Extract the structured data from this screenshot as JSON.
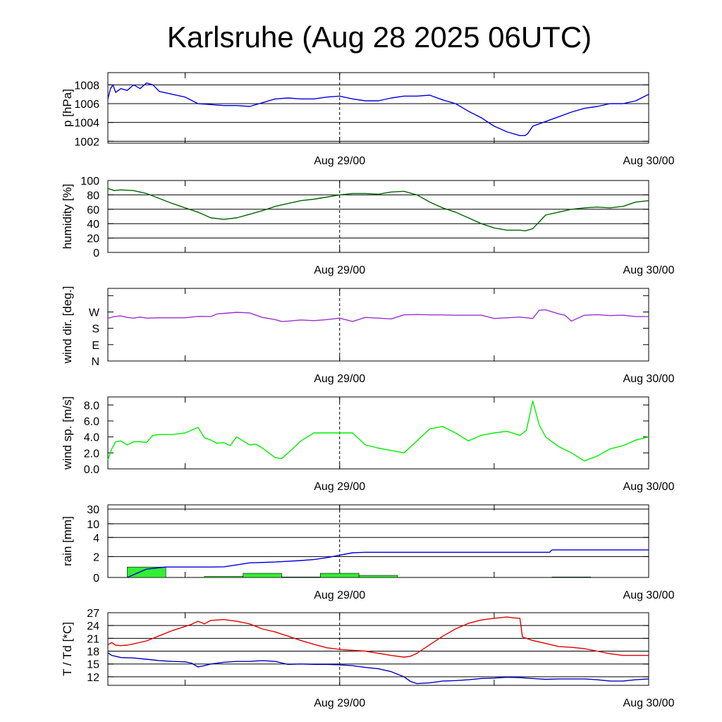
{
  "title": "Karlsruhe (Aug 28 2025 06UTC)",
  "colors": {
    "pressure": "#0000e0",
    "humidity": "#006400",
    "wind_dir": "#9a32cd",
    "wind_speed": "#00ee00",
    "rain_total": "#0000e0",
    "rain_bars": "#33ee33",
    "temperature": "#e00000",
    "dewpoint": "#0000c0"
  },
  "chart_data": [
    {
      "type": "line",
      "name": "pressure",
      "ylabel": "p [hPa]",
      "ylim": [
        1001.8,
        1009.3
      ],
      "yticks": [
        1002,
        1004,
        1006,
        1008
      ],
      "ytick_labels": [
        "1002",
        "1004",
        "1006",
        "1008"
      ],
      "xlim": [
        0,
        42
      ],
      "xticks": [
        6,
        18,
        30,
        42
      ],
      "xtick_labels": [
        "Aug 29/00",
        "Aug 30/00"
      ],
      "xtick_label_hours": [
        18,
        42
      ],
      "marker_hour": 18,
      "grid": true,
      "series": [
        {
          "name": "p",
          "x": [
            0,
            0.2,
            0.4,
            0.6,
            1,
            1.5,
            2,
            2.5,
            3,
            3.5,
            4,
            5,
            6,
            7,
            8,
            9,
            10,
            11,
            12,
            13,
            14,
            15,
            16,
            17,
            18,
            19,
            20,
            21,
            22,
            23,
            24,
            25,
            26,
            27,
            28,
            29,
            30,
            31,
            32,
            32.4,
            32.6,
            33,
            34,
            35,
            36,
            37,
            38,
            39,
            40,
            41,
            42
          ],
          "values": [
            1006.5,
            1007.6,
            1008.0,
            1007.2,
            1007.6,
            1007.4,
            1008.0,
            1007.6,
            1008.2,
            1008.0,
            1007.3,
            1007.0,
            1006.7,
            1006.0,
            1005.9,
            1005.8,
            1005.8,
            1005.7,
            1006.1,
            1006.5,
            1006.6,
            1006.5,
            1006.5,
            1006.7,
            1006.8,
            1006.5,
            1006.3,
            1006.3,
            1006.6,
            1006.8,
            1006.8,
            1006.9,
            1006.4,
            1006.0,
            1005.2,
            1004.5,
            1003.6,
            1003.0,
            1002.6,
            1002.6,
            1002.8,
            1003.6,
            1004.1,
            1004.6,
            1005.1,
            1005.5,
            1005.7,
            1006.0,
            1006.0,
            1006.3,
            1007.0
          ]
        }
      ]
    },
    {
      "type": "line",
      "name": "humidity",
      "ylabel": "humidity [%]",
      "ylim": [
        0,
        100
      ],
      "yticks": [
        0,
        20,
        40,
        60,
        80,
        100
      ],
      "ytick_labels": [
        "0",
        "20",
        "40",
        "60",
        "80",
        "100"
      ],
      "xlim": [
        0,
        42
      ],
      "xticks": [
        6,
        18,
        30,
        42
      ],
      "xtick_labels": [
        "Aug 29/00",
        "Aug 30/00"
      ],
      "xtick_label_hours": [
        18,
        42
      ],
      "marker_hour": 18,
      "grid": true,
      "series": [
        {
          "name": "humidity",
          "x": [
            0,
            0.5,
            1,
            2,
            3,
            4,
            5,
            6,
            7,
            8,
            9,
            10,
            11,
            12,
            13,
            14,
            15,
            16,
            17,
            18,
            19,
            20,
            21,
            22,
            23,
            24,
            25,
            26,
            27,
            28,
            29,
            30,
            31,
            32,
            32.4,
            32.6,
            33,
            34,
            35,
            36,
            37,
            38,
            39,
            40,
            41,
            42
          ],
          "values": [
            89,
            86,
            87,
            86,
            82,
            75,
            68,
            62,
            56,
            48,
            46,
            48,
            53,
            58,
            64,
            68,
            72,
            74,
            77,
            80,
            82,
            82,
            81,
            84,
            85,
            80,
            70,
            62,
            56,
            48,
            40,
            34,
            31,
            31,
            30,
            31,
            33,
            52,
            56,
            60,
            62,
            63,
            62,
            64,
            70,
            72
          ]
        }
      ]
    },
    {
      "type": "line",
      "name": "wind_direction",
      "ylabel": "wind dir. [deg.]",
      "ylim": [
        0,
        400
      ],
      "yticks": [
        0,
        90,
        180,
        270,
        360
      ],
      "ytick_labels": [
        "N",
        "E",
        "S",
        "W",
        ""
      ],
      "xlim": [
        0,
        42
      ],
      "xticks": [
        6,
        18,
        30,
        42
      ],
      "xtick_labels": [
        "Aug 29/00",
        "Aug 30/00"
      ],
      "xtick_label_hours": [
        18,
        42
      ],
      "marker_hour": 18,
      "grid": false,
      "series": [
        {
          "name": "direction",
          "x": [
            0,
            0.5,
            1,
            1.5,
            2,
            2.5,
            3,
            4,
            5,
            6,
            7,
            8,
            8.5,
            9,
            10,
            11,
            12,
            13,
            13.5,
            14,
            15,
            16,
            17,
            18,
            19,
            20,
            21,
            22,
            23,
            24,
            25,
            26,
            27,
            28,
            29,
            30,
            31,
            32,
            33,
            33.5,
            34,
            35,
            35.5,
            36,
            37,
            38,
            39,
            40,
            41,
            42
          ],
          "values": [
            235,
            245,
            248,
            240,
            236,
            242,
            236,
            238,
            238,
            238,
            246,
            245,
            260,
            262,
            268,
            265,
            240,
            228,
            218,
            220,
            226,
            222,
            228,
            236,
            218,
            240,
            236,
            232,
            254,
            256,
            254,
            254,
            252,
            252,
            252,
            234,
            238,
            242,
            234,
            280,
            282,
            260,
            252,
            220,
            252,
            255,
            250,
            252,
            245,
            245
          ]
        }
      ]
    },
    {
      "type": "line",
      "name": "wind_speed",
      "ylabel": "wind sp. [m/s]",
      "ylim": [
        0,
        9
      ],
      "yticks": [
        0,
        2,
        4,
        6,
        8
      ],
      "ytick_labels": [
        "0.0",
        "2.0",
        "4.0",
        "6.0",
        "8.0"
      ],
      "xlim": [
        0,
        42
      ],
      "xticks": [
        6,
        18,
        30,
        42
      ],
      "xtick_labels": [
        "Aug 29/00",
        "Aug 30/00"
      ],
      "xtick_label_hours": [
        18,
        42
      ],
      "marker_hour": 18,
      "grid": false,
      "series": [
        {
          "name": "speed",
          "x": [
            0,
            0.3,
            0.6,
            1,
            1.5,
            2,
            2.5,
            3,
            3.5,
            4,
            5,
            6,
            7,
            7.5,
            8,
            8.5,
            9,
            9.5,
            10,
            10.5,
            11,
            11.5,
            12,
            13,
            13.5,
            14,
            15,
            16,
            17,
            18,
            19,
            20,
            21,
            22,
            23,
            24,
            25,
            26,
            27,
            28,
            29,
            30,
            31,
            32,
            32.5,
            33,
            33.5,
            34,
            35,
            36,
            37,
            38,
            39,
            40,
            41,
            42
          ],
          "values": [
            1.1,
            2.5,
            3.4,
            3.5,
            3.0,
            3.4,
            3.4,
            3.3,
            4.2,
            4.3,
            4.3,
            4.5,
            5.2,
            3.9,
            3.6,
            3.2,
            3.3,
            2.9,
            4.0,
            3.5,
            3.0,
            3.1,
            2.6,
            1.4,
            1.3,
            2.0,
            3.5,
            4.5,
            4.5,
            4.5,
            4.5,
            3.0,
            2.6,
            2.3,
            2.0,
            3.5,
            5.0,
            5.3,
            4.5,
            3.5,
            4.2,
            4.5,
            4.7,
            4.2,
            4.8,
            8.5,
            5.5,
            4.0,
            2.8,
            2.0,
            1.0,
            1.6,
            2.5,
            2.9,
            3.6,
            4.0
          ]
        }
      ]
    },
    {
      "type": "bar+line",
      "name": "rain",
      "ylabel": "rain [mm]",
      "yscale": "custom",
      "yticks": [
        0,
        2,
        4,
        10,
        30
      ],
      "ytick_labels": [
        "0",
        "2",
        "4",
        "10",
        "30"
      ],
      "xlim": [
        0,
        42
      ],
      "xticks": [
        6,
        18,
        30,
        42
      ],
      "xtick_labels": [
        "Aug 29/00",
        "Aug 30/00"
      ],
      "xtick_label_hours": [
        18,
        42
      ],
      "marker_hour": 18,
      "grid": true,
      "bars": {
        "name": "interval rain (3h)",
        "start": [
          1.5,
          7.5,
          10.5,
          13.5,
          16.5,
          19.5,
          34.5
        ],
        "end": [
          4.5,
          10.5,
          13.5,
          16.5,
          19.5,
          22.5,
          37.5
        ],
        "values": [
          1.0,
          0.1,
          0.4,
          0.05,
          0.4,
          0.2,
          0.05
        ]
      },
      "series": [
        {
          "name": "accumulated rain",
          "x": [
            1.5,
            3,
            4.5,
            8,
            9,
            10,
            11,
            13,
            15,
            16,
            17,
            18,
            19,
            20,
            22,
            25,
            30,
            34.3,
            34.5,
            36,
            42
          ],
          "values": [
            0,
            0.8,
            1.0,
            1.0,
            1.02,
            1.2,
            1.4,
            1.48,
            1.62,
            1.72,
            1.9,
            2.15,
            2.4,
            2.45,
            2.45,
            2.45,
            2.45,
            2.45,
            2.7,
            2.7,
            2.7
          ]
        }
      ]
    },
    {
      "type": "line",
      "name": "temperature",
      "ylabel": "T / Td [*C]",
      "ylim": [
        10,
        27
      ],
      "yticks": [
        12,
        15,
        18,
        21,
        24,
        27
      ],
      "ytick_labels": [
        "12",
        "15",
        "18",
        "21",
        "24",
        "27"
      ],
      "xlim": [
        0,
        42
      ],
      "xticks": [
        6,
        18,
        30,
        42
      ],
      "xtick_labels": [
        "Aug 29/00",
        "Aug 30/00"
      ],
      "xtick_label_hours": [
        18,
        42
      ],
      "marker_hour": 18,
      "grid": true,
      "series": [
        {
          "name": "T",
          "x": [
            0,
            0.3,
            0.6,
            1,
            1.5,
            2,
            3,
            4,
            5,
            6,
            6.5,
            7,
            7.5,
            8,
            9,
            10,
            11,
            12,
            13,
            14,
            15,
            16,
            17,
            18,
            19,
            20,
            21,
            22,
            23,
            23.5,
            24,
            25,
            26,
            27,
            28,
            29,
            30,
            31,
            31.5,
            32,
            32.2,
            33,
            34,
            35,
            36,
            37,
            38,
            39,
            40,
            41,
            42
          ],
          "values": [
            19.5,
            20.0,
            19.4,
            19.3,
            19.4,
            19.7,
            20.4,
            21.6,
            22.8,
            23.8,
            24.3,
            25.0,
            24.4,
            25.2,
            25.4,
            25.0,
            24.4,
            23.2,
            22.5,
            21.5,
            20.5,
            19.6,
            18.8,
            18.4,
            18.2,
            18.0,
            17.5,
            17.0,
            16.6,
            16.8,
            17.5,
            19.5,
            21.5,
            23.2,
            24.5,
            25.3,
            25.7,
            26.0,
            25.8,
            25.7,
            21.3,
            20.5,
            19.8,
            19.1,
            18.9,
            18.6,
            18.0,
            17.4,
            17.0,
            17.0,
            17.0
          ]
        },
        {
          "name": "Td",
          "x": [
            0,
            0.3,
            0.6,
            1,
            2,
            3,
            4,
            5,
            6,
            6.5,
            7,
            7.5,
            8,
            9,
            10,
            11,
            12,
            13,
            14,
            15,
            16,
            17,
            18,
            19,
            20,
            21,
            22,
            23,
            23.5,
            24,
            25,
            26,
            27,
            28,
            29,
            30,
            31,
            32,
            33,
            34,
            35,
            36,
            37,
            38,
            39,
            40,
            41,
            42
          ],
          "values": [
            17.6,
            17.0,
            16.8,
            16.5,
            16.4,
            16.1,
            15.8,
            15.6,
            15.5,
            15.2,
            14.3,
            14.6,
            15.0,
            15.4,
            15.6,
            15.6,
            15.8,
            15.6,
            14.9,
            15.0,
            14.9,
            14.9,
            14.8,
            14.6,
            14.2,
            13.9,
            13.2,
            12.0,
            10.9,
            10.4,
            10.6,
            11.0,
            11.1,
            11.3,
            11.6,
            11.7,
            11.9,
            11.8,
            11.6,
            11.4,
            11.5,
            11.5,
            11.5,
            11.3,
            11.0,
            11.0,
            11.3,
            11.5
          ]
        }
      ]
    }
  ]
}
